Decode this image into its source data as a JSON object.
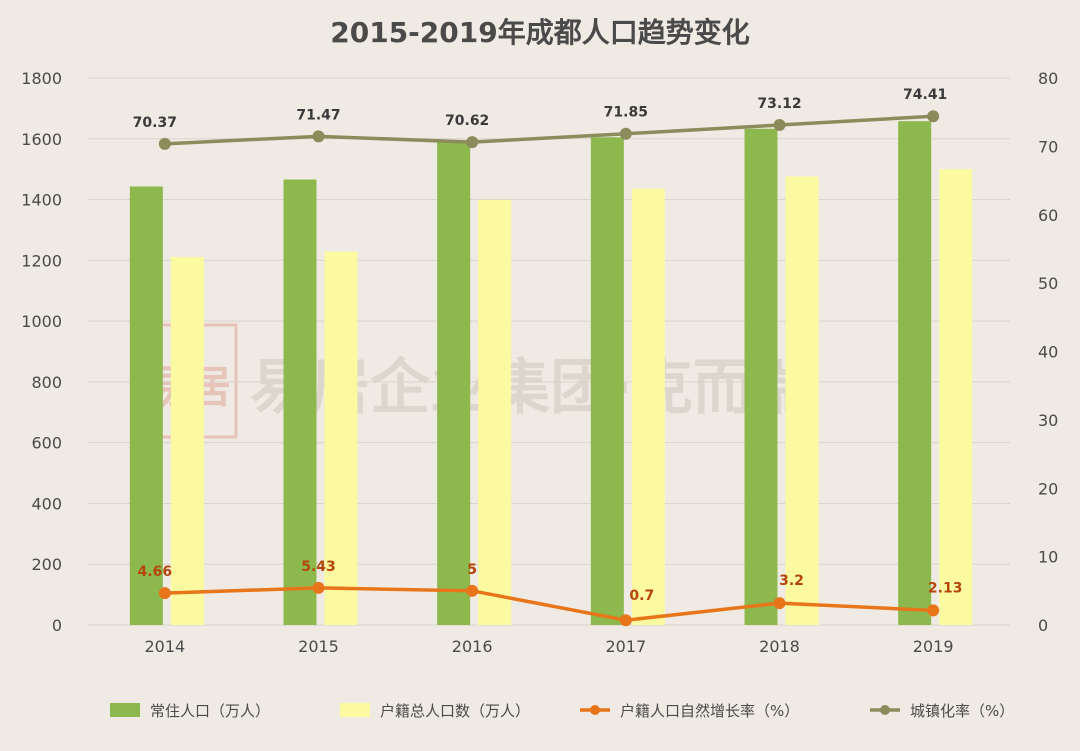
{
  "colors": {
    "resident": "#8db84e",
    "registered": "#fbfaa0",
    "growth": "#e8751a",
    "urban": "#8b8b5c",
    "grid": "#d9d4cc"
  },
  "watermark": {
    "text": "易居企业集团·克而瑞",
    "seal_text": "易居"
  },
  "chart_data": {
    "type": "bar",
    "title": "2015-2019年成都人口趋势变化",
    "categories": [
      "2014",
      "2015",
      "2016",
      "2017",
      "2018",
      "2019"
    ],
    "y_left": {
      "min": 0,
      "max": 1800,
      "ticks": [
        0,
        200,
        400,
        600,
        800,
        1000,
        1200,
        1400,
        1600,
        1800
      ]
    },
    "y_right": {
      "min": 0,
      "max": 80,
      "ticks": [
        0,
        10,
        20,
        30,
        40,
        50,
        60,
        70,
        80
      ]
    },
    "grid": true,
    "legend_position": "bottom",
    "series": [
      {
        "name": "常住人口（万人）",
        "type": "bar",
        "axis": "left",
        "values": [
          1443,
          1466,
          1592,
          1605,
          1633,
          1658
        ]
      },
      {
        "name": "户籍总人口数（万人）",
        "type": "bar",
        "axis": "left",
        "values": [
          1211,
          1229,
          1399,
          1436,
          1476,
          1500
        ]
      },
      {
        "name": "户籍人口自然增长率（%）",
        "type": "line",
        "axis": "right",
        "values": [
          4.66,
          5.43,
          5,
          0.7,
          3.2,
          2.13
        ],
        "labels": [
          "4.66",
          "5.43",
          "5",
          "0.7",
          "3.2",
          "2.13"
        ]
      },
      {
        "name": "城镇化率（%）",
        "type": "line",
        "axis": "right",
        "values": [
          70.37,
          71.47,
          70.62,
          71.85,
          73.12,
          74.41
        ],
        "labels": [
          "70.37",
          "71.47",
          "70.62",
          "71.85",
          "73.12",
          "74.41"
        ]
      }
    ]
  }
}
